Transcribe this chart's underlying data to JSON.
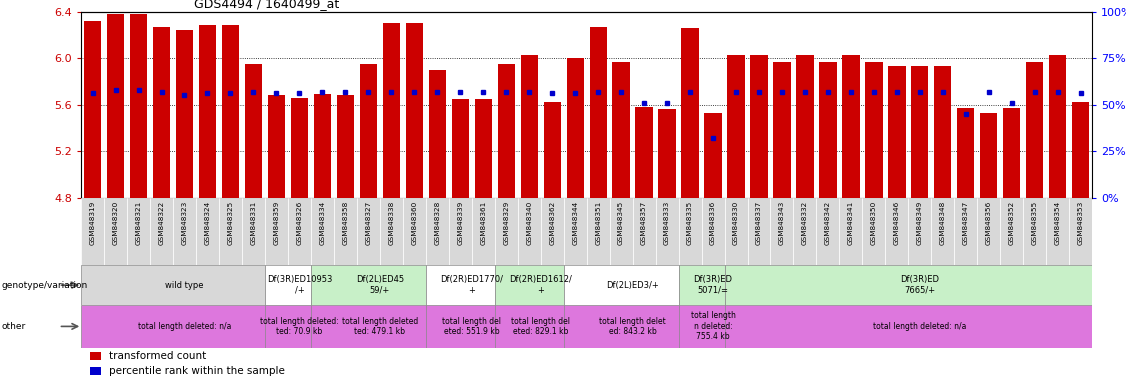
{
  "title": "GDS4494 / 1640499_at",
  "ylim": [
    4.8,
    6.4
  ],
  "yticks": [
    4.8,
    5.2,
    5.6,
    6.0,
    6.4
  ],
  "right_yticks": [
    0,
    25,
    50,
    75,
    100
  ],
  "bar_color": "#cc0000",
  "dot_color": "#0000cc",
  "samples": [
    "GSM848319",
    "GSM848320",
    "GSM848321",
    "GSM848322",
    "GSM848323",
    "GSM848324",
    "GSM848325",
    "GSM848331",
    "GSM848359",
    "GSM848326",
    "GSM848334",
    "GSM848358",
    "GSM848327",
    "GSM848338",
    "GSM848360",
    "GSM848328",
    "GSM848339",
    "GSM848361",
    "GSM848329",
    "GSM848340",
    "GSM848362",
    "GSM848344",
    "GSM848351",
    "GSM848345",
    "GSM848357",
    "GSM848333",
    "GSM848335",
    "GSM848336",
    "GSM848330",
    "GSM848337",
    "GSM848343",
    "GSM848332",
    "GSM848342",
    "GSM848341",
    "GSM848350",
    "GSM848346",
    "GSM848349",
    "GSM848348",
    "GSM848347",
    "GSM848356",
    "GSM848352",
    "GSM848355",
    "GSM848354",
    "GSM848353"
  ],
  "bar_heights": [
    6.32,
    6.38,
    6.38,
    6.27,
    6.24,
    6.28,
    6.28,
    5.95,
    5.68,
    5.66,
    5.69,
    5.68,
    5.95,
    6.3,
    6.3,
    5.9,
    5.65,
    5.65,
    5.95,
    6.03,
    5.62,
    6.0,
    6.27,
    5.97,
    5.58,
    5.56,
    6.26,
    5.53,
    6.03,
    6.03,
    5.97,
    6.03,
    5.97,
    6.03,
    5.97,
    5.93,
    5.93,
    5.93,
    5.57,
    5.53,
    5.57,
    5.97,
    6.03,
    5.62
  ],
  "percentile_values": [
    56,
    58,
    58,
    57,
    55,
    56,
    56,
    57,
    56,
    56,
    57,
    57,
    57,
    57,
    57,
    57,
    57,
    57,
    57,
    57,
    56,
    56,
    57,
    57,
    51,
    51,
    57,
    32,
    57,
    57,
    57,
    57,
    57,
    57,
    57,
    57,
    57,
    57,
    45,
    57,
    51,
    57,
    57,
    56
  ],
  "group_backgrounds": [
    {
      "start": 0,
      "end": 8,
      "color": "#d8d8d8",
      "label": "wild type"
    },
    {
      "start": 8,
      "end": 10,
      "color": "#ffffff",
      "label": "Df(3R)ED10953\n/+"
    },
    {
      "start": 10,
      "end": 15,
      "color": "#c8f0c8",
      "label": "Df(2L)ED45\n59/+"
    },
    {
      "start": 15,
      "end": 18,
      "color": "#ffffff",
      "label": "Df(2R)ED1770/\n+"
    },
    {
      "start": 18,
      "end": 21,
      "color": "#c8f0c8",
      "label": "Df(2R)ED1612/\n+"
    },
    {
      "start": 21,
      "end": 26,
      "color": "#ffffff",
      "label": "Df(2L)ED3/+"
    },
    {
      "start": 26,
      "end": 28,
      "color": "#c8f0c8",
      "label": "Df(3R)ED\n5071/="
    },
    {
      "start": 28,
      "end": 44,
      "color": "#c8f0c8",
      "label": "Df(3R)ED\n7665/+"
    }
  ],
  "other_texts": [
    {
      "start": 0,
      "end": 8,
      "label": "total length deleted: n/a"
    },
    {
      "start": 8,
      "end": 10,
      "label": "total length deleted:\nted: 70.9 kb"
    },
    {
      "start": 10,
      "end": 15,
      "label": "total length deleted\nted: 479.1 kb"
    },
    {
      "start": 15,
      "end": 18,
      "label": "total length del\neted: 551.9 kb"
    },
    {
      "start": 18,
      "end": 21,
      "label": "total length del\neted: 829.1 kb"
    },
    {
      "start": 21,
      "end": 26,
      "label": "total length delet\ned: 843.2 kb"
    },
    {
      "start": 26,
      "end": 28,
      "label": "total length\nn deleted:\n755.4 kb"
    },
    {
      "start": 28,
      "end": 44,
      "label": "total length deleted: n/a"
    }
  ],
  "xtick_bg_color": "#d8d8d8",
  "other_row_color": "#dd77dd",
  "geno_label_fontsize": 6,
  "other_label_fontsize": 5.5
}
